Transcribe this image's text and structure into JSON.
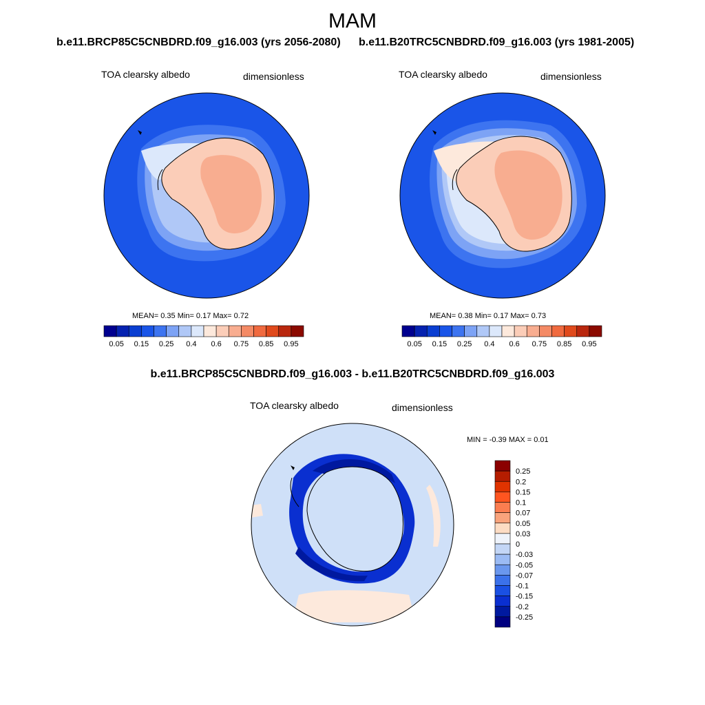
{
  "season": "MAM",
  "panel_left": {
    "run_title": "b.e11.BRCP85C5CNBDRD.f09_g16.003 (yrs 2056-2080)",
    "variable": "TOA clearsky albedo",
    "units": "dimensionless",
    "stats_text": "MEAN=   0.35  Min=   0.17  Max=   0.72"
  },
  "panel_right": {
    "run_title": "b.e11.B20TRC5CNBDRD.f09_g16.003 (yrs 1981-2005)",
    "variable": "TOA clearsky albedo",
    "units": "dimensionless",
    "stats_text": "MEAN=   0.38  Min=   0.17  Max=   0.73"
  },
  "panel_diff": {
    "title": "b.e11.BRCP85C5CNBDRD.f09_g16.003 - b.e11.B20TRC5CNBDRD.f09_g16.003",
    "variable": "TOA clearsky albedo",
    "units": "dimensionless",
    "stats_text": "MIN =  -0.39 MAX =   0.01"
  },
  "colorbar_abs": {
    "colors": [
      "#00008f",
      "#0522b0",
      "#0a3ed1",
      "#1a55e8",
      "#3d74f0",
      "#7da3f5",
      "#b0c8f7",
      "#dce8fb",
      "#fde9dc",
      "#fbcdb8",
      "#f8ad90",
      "#f48a65",
      "#f06a3f",
      "#e04a1c",
      "#b9270e",
      "#8b0a00"
    ],
    "tick_labels": [
      "0.05",
      "0.15",
      "0.25",
      "0.4",
      "0.6",
      "0.75",
      "0.85",
      "0.95"
    ]
  },
  "colorbar_diff": {
    "colors": [
      "#8b0000",
      "#b51d00",
      "#e03300",
      "#ff5520",
      "#fb7d50",
      "#f9a37c",
      "#fcdcc4",
      "#eef3fb",
      "#c3d6f6",
      "#9bbbf4",
      "#6a97ee",
      "#3b71ea",
      "#1a50e3",
      "#0a2fd0",
      "#00199f",
      "#000080"
    ],
    "tick_labels": [
      "0.25",
      "0.2",
      "0.15",
      "0.1",
      "0.07",
      "0.05",
      "0.03",
      "0",
      "-0.03",
      "-0.05",
      "-0.07",
      "-0.1",
      "-0.15",
      "-0.2",
      "-0.25"
    ]
  }
}
